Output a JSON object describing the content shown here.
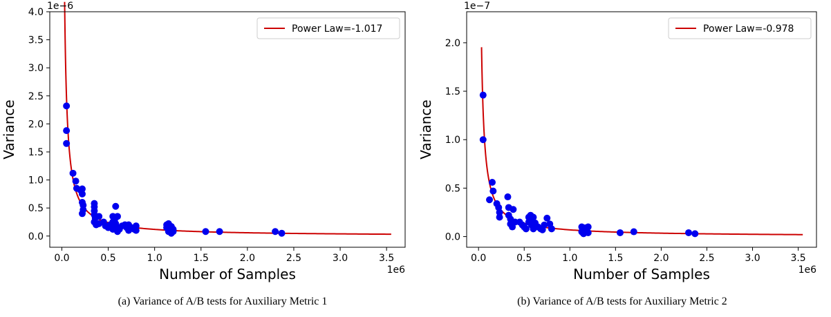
{
  "colors": {
    "points": "#0000ee",
    "fit": "#cc0000",
    "axis": "#000000"
  },
  "captions": [
    "(a)  Variance of A/B tests for Auxiliary Metric 1",
    "(b)  Variance of A/B tests for Auxiliary Metric 2"
  ],
  "chart_data": [
    {
      "type": "scatter",
      "title": "",
      "xlabel": "Number of Samples",
      "ylabel": "Variance",
      "x_multiplier_label": "1e6",
      "y_multiplier_label": "1e−6",
      "xlim": [
        -0.13,
        3.7
      ],
      "ylim": [
        -0.2,
        4.0
      ],
      "xticks": [
        0.0,
        0.5,
        1.0,
        1.5,
        2.0,
        2.5,
        3.0,
        3.5
      ],
      "xtick_labels": [
        "0.0",
        "0.5",
        "1.0",
        "1.5",
        "2.0",
        "2.5",
        "3.0",
        "3.5"
      ],
      "yticks": [
        0.0,
        0.5,
        1.0,
        1.5,
        2.0,
        2.5,
        3.0,
        3.5,
        4.0
      ],
      "ytick_labels": [
        "0.0",
        "0.5",
        "1.0",
        "1.5",
        "2.0",
        "2.5",
        "3.0",
        "3.5",
        "4.0"
      ],
      "grid": false,
      "legend_position": "top-right",
      "fit": {
        "name": "Power Law=-1.017",
        "a": 0.118,
        "b": -1.017,
        "x_range": [
          0.03,
          3.55
        ]
      },
      "series": [
        {
          "points": [
            [
              0.05,
              2.32
            ],
            [
              0.05,
              1.88
            ],
            [
              0.05,
              1.65
            ],
            [
              0.12,
              1.12
            ],
            [
              0.15,
              0.98
            ],
            [
              0.16,
              0.85
            ],
            [
              0.2,
              0.82
            ],
            [
              0.22,
              0.84
            ],
            [
              0.22,
              0.75
            ],
            [
              0.22,
              0.6
            ],
            [
              0.23,
              0.55
            ],
            [
              0.23,
              0.47
            ],
            [
              0.22,
              0.4
            ],
            [
              0.35,
              0.58
            ],
            [
              0.35,
              0.52
            ],
            [
              0.35,
              0.45
            ],
            [
              0.35,
              0.38
            ],
            [
              0.36,
              0.32
            ],
            [
              0.35,
              0.25
            ],
            [
              0.37,
              0.2
            ],
            [
              0.4,
              0.22
            ],
            [
              0.4,
              0.35
            ],
            [
              0.45,
              0.25
            ],
            [
              0.47,
              0.18
            ],
            [
              0.5,
              0.15
            ],
            [
              0.52,
              0.2
            ],
            [
              0.55,
              0.35
            ],
            [
              0.55,
              0.25
            ],
            [
              0.55,
              0.12
            ],
            [
              0.57,
              0.3
            ],
            [
              0.58,
              0.22
            ],
            [
              0.58,
              0.18
            ],
            [
              0.58,
              0.53
            ],
            [
              0.6,
              0.35
            ],
            [
              0.6,
              0.15
            ],
            [
              0.6,
              0.08
            ],
            [
              0.62,
              0.12
            ],
            [
              0.65,
              0.18
            ],
            [
              0.68,
              0.2
            ],
            [
              0.7,
              0.15
            ],
            [
              0.72,
              0.1
            ],
            [
              0.72,
              0.2
            ],
            [
              0.75,
              0.15
            ],
            [
              0.78,
              0.12
            ],
            [
              0.8,
              0.18
            ],
            [
              0.8,
              0.1
            ],
            [
              1.13,
              0.2
            ],
            [
              1.13,
              0.15
            ],
            [
              1.15,
              0.12
            ],
            [
              1.15,
              0.08
            ],
            [
              1.15,
              0.22
            ],
            [
              1.17,
              0.1
            ],
            [
              1.18,
              0.17
            ],
            [
              1.18,
              0.05
            ],
            [
              1.2,
              0.12
            ],
            [
              1.2,
              0.08
            ],
            [
              1.55,
              0.08
            ],
            [
              1.7,
              0.08
            ],
            [
              2.3,
              0.08
            ],
            [
              2.37,
              0.05
            ]
          ]
        }
      ]
    },
    {
      "type": "scatter",
      "title": "",
      "xlabel": "Number of Samples",
      "ylabel": "Variance",
      "x_multiplier_label": "1e6",
      "y_multiplier_label": "1e−7",
      "xlim": [
        -0.13,
        3.7
      ],
      "ylim": [
        -0.11,
        2.32
      ],
      "xticks": [
        0.0,
        0.5,
        1.0,
        1.5,
        2.0,
        2.5,
        3.0,
        3.5
      ],
      "xtick_labels": [
        "0.0",
        "0.5",
        "1.0",
        "1.5",
        "2.0",
        "2.5",
        "3.0",
        "3.5"
      ],
      "yticks": [
        0.0,
        0.5,
        1.0,
        1.5,
        2.0
      ],
      "ytick_labels": [
        "0.0",
        "0.5",
        "1.0",
        "1.5",
        "2.0"
      ],
      "grid": false,
      "legend_position": "top-right",
      "fit": {
        "name": "Power Law=-0.978",
        "a": 0.0695,
        "b": -0.978,
        "x_range": [
          0.033,
          3.55
        ]
      },
      "series": [
        {
          "points": [
            [
              0.05,
              1.46
            ],
            [
              0.05,
              1.0
            ],
            [
              0.12,
              0.38
            ],
            [
              0.15,
              0.56
            ],
            [
              0.16,
              0.47
            ],
            [
              0.2,
              0.34
            ],
            [
              0.22,
              0.3
            ],
            [
              0.23,
              0.25
            ],
            [
              0.23,
              0.2
            ],
            [
              0.32,
              0.41
            ],
            [
              0.33,
              0.3
            ],
            [
              0.33,
              0.22
            ],
            [
              0.35,
              0.18
            ],
            [
              0.35,
              0.13
            ],
            [
              0.37,
              0.1
            ],
            [
              0.38,
              0.28
            ],
            [
              0.4,
              0.15
            ],
            [
              0.45,
              0.15
            ],
            [
              0.48,
              0.12
            ],
            [
              0.5,
              0.1
            ],
            [
              0.52,
              0.08
            ],
            [
              0.55,
              0.2
            ],
            [
              0.55,
              0.15
            ],
            [
              0.57,
              0.22
            ],
            [
              0.58,
              0.17
            ],
            [
              0.58,
              0.12
            ],
            [
              0.6,
              0.2
            ],
            [
              0.6,
              0.08
            ],
            [
              0.62,
              0.14
            ],
            [
              0.65,
              0.1
            ],
            [
              0.68,
              0.08
            ],
            [
              0.7,
              0.07
            ],
            [
              0.72,
              0.12
            ],
            [
              0.75,
              0.19
            ],
            [
              0.78,
              0.13
            ],
            [
              0.8,
              0.08
            ],
            [
              1.13,
              0.1
            ],
            [
              1.13,
              0.05
            ],
            [
              1.15,
              0.07
            ],
            [
              1.15,
              0.03
            ],
            [
              1.17,
              0.09
            ],
            [
              1.18,
              0.06
            ],
            [
              1.2,
              0.1
            ],
            [
              1.2,
              0.04
            ],
            [
              1.55,
              0.04
            ],
            [
              1.7,
              0.05
            ],
            [
              2.3,
              0.04
            ],
            [
              2.37,
              0.03
            ]
          ]
        }
      ]
    }
  ]
}
